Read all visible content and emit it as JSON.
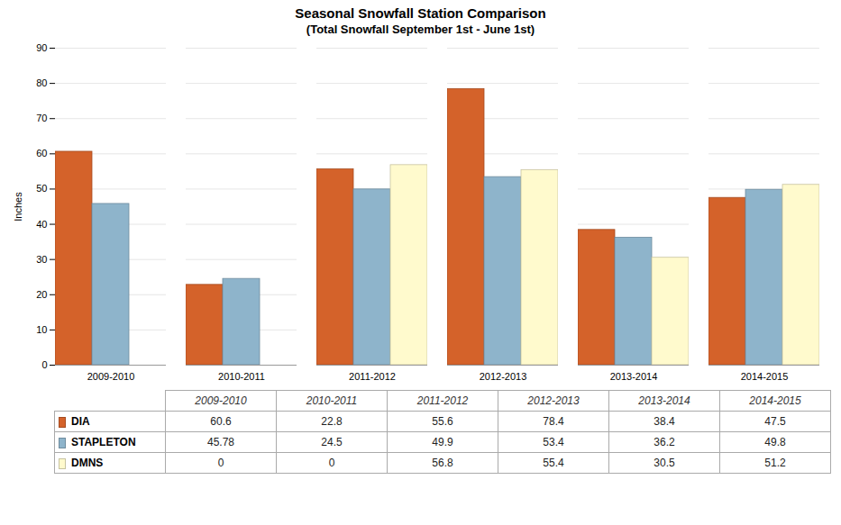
{
  "chart_data": {
    "type": "bar",
    "title": "Seasonal Snowfall Station Comparison",
    "subtitle": "(Total Snowfall September 1st - June 1st)",
    "ylabel": "Inches",
    "categories": [
      "2009-2010",
      "2010-2011",
      "2011-2012",
      "2012-2013",
      "2013-2014",
      "2014-2015"
    ],
    "series": [
      {
        "name": "DIA",
        "color": "#D4622A",
        "values": [
          60.6,
          22.8,
          55.6,
          78.4,
          38.4,
          47.5
        ]
      },
      {
        "name": "STAPLETON",
        "color": "#8EB4CB",
        "values": [
          45.78,
          24.5,
          49.9,
          53.4,
          36.2,
          49.8
        ]
      },
      {
        "name": "DMNS",
        "color": "#FFFACD",
        "values": [
          0,
          0,
          56.8,
          55.4,
          30.5,
          51.2
        ]
      }
    ],
    "ylim": [
      0,
      90
    ],
    "yticks": [
      0,
      10,
      20,
      30,
      40,
      50,
      60,
      70,
      80,
      90
    ],
    "grid": true
  }
}
